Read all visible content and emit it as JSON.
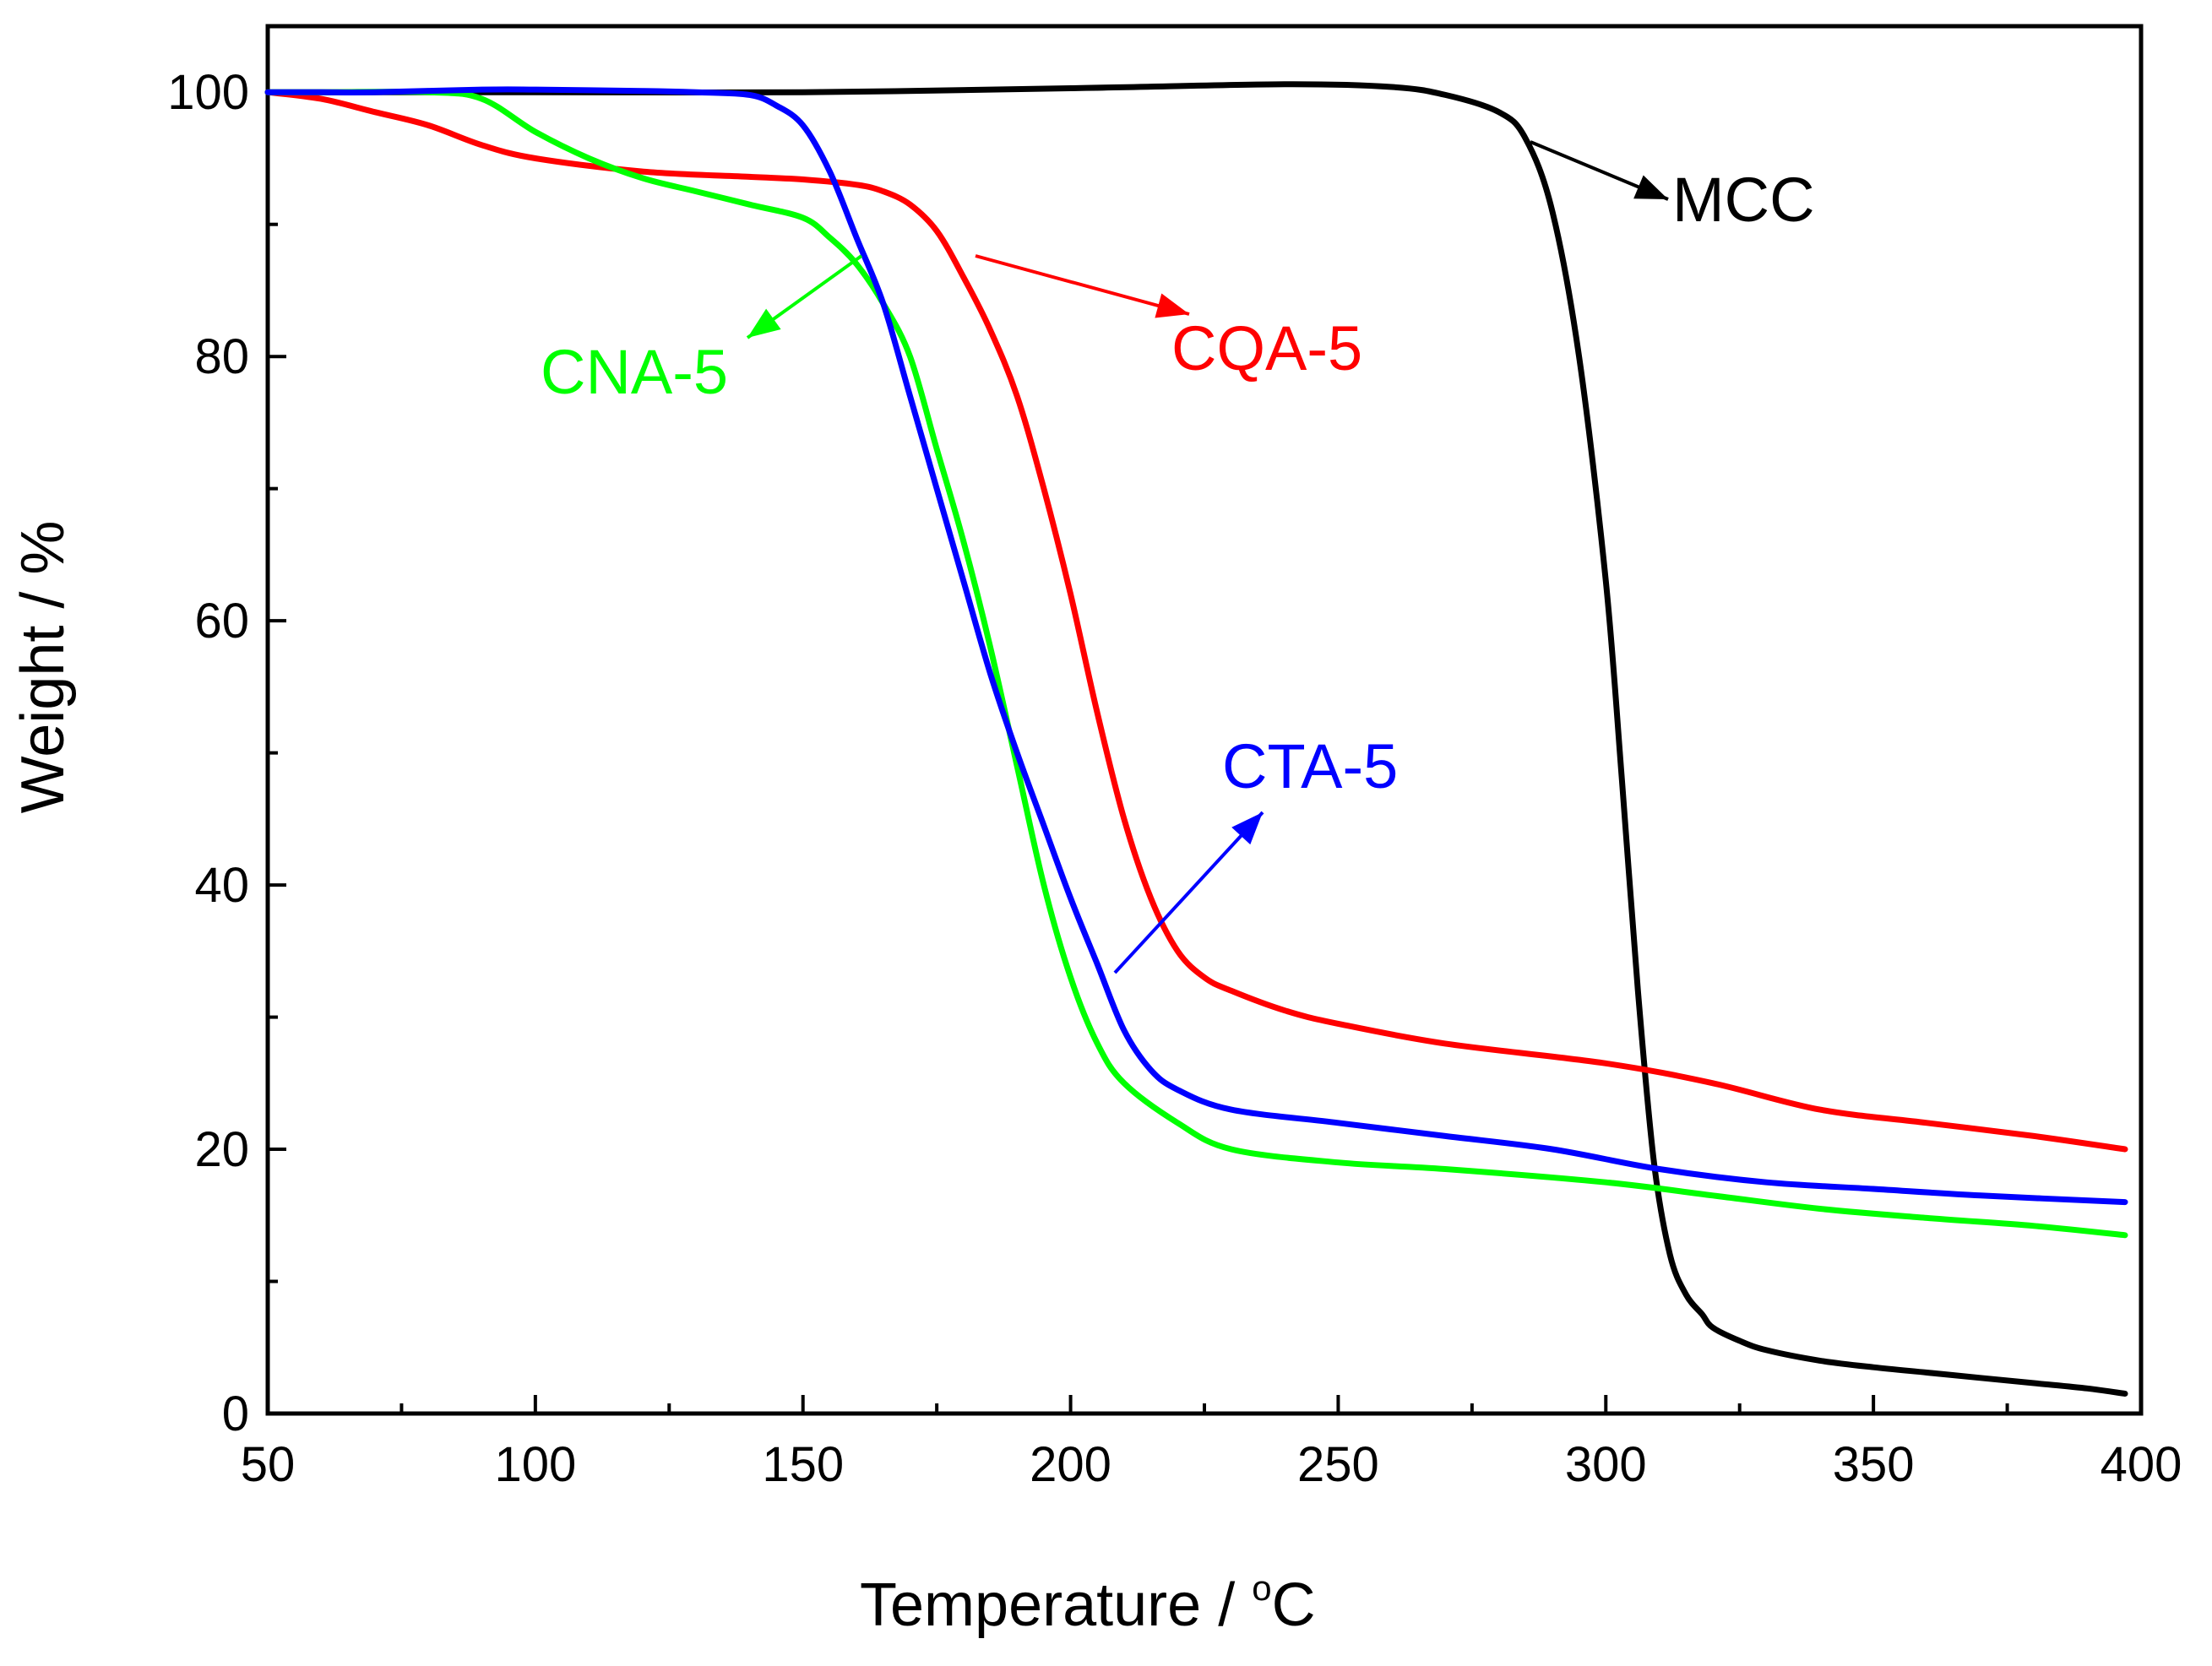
{
  "chart_data": {
    "type": "line",
    "title": "",
    "xlabel": "Temperature / °C",
    "xlabel_main": "Temperature / ",
    "xlabel_unit_sup": "o",
    "xlabel_unit": "C",
    "ylabel": "Weight  / %",
    "xlim": [
      50,
      400
    ],
    "ylim": [
      0,
      105
    ],
    "x_ticks": [
      50,
      100,
      150,
      200,
      250,
      300,
      350,
      400
    ],
    "x_minor_ticks": [
      75,
      125,
      175,
      225,
      275,
      325,
      375
    ],
    "y_ticks": [
      0,
      20,
      40,
      60,
      80,
      100
    ],
    "y_minor_ticks": [
      10,
      30,
      50,
      70,
      90
    ],
    "grid": false,
    "series": [
      {
        "name": "MCC",
        "color": "#000000",
        "x": [
          50,
          100,
          150,
          200,
          240,
          260,
          270,
          280,
          285,
          290,
          295,
          300,
          303,
          306,
          309,
          312,
          315,
          318,
          320,
          325,
          330,
          340,
          350,
          360,
          370,
          380,
          390,
          397
        ],
        "y": [
          100,
          100,
          100,
          100.3,
          100.6,
          100.4,
          99.8,
          98.5,
          96.5,
          91,
          80,
          63,
          48,
          32,
          19,
          12,
          9,
          7.5,
          6.5,
          5.5,
          4.8,
          4.0,
          3.5,
          3.1,
          2.7,
          2.3,
          1.9,
          1.5
        ]
      },
      {
        "name": "CQA-5",
        "color": "#ff0000",
        "x": [
          50,
          60,
          70,
          80,
          90,
          100,
          120,
          140,
          150,
          160,
          165,
          170,
          175,
          180,
          185,
          190,
          195,
          200,
          205,
          210,
          215,
          220,
          225,
          230,
          240,
          250,
          270,
          300,
          320,
          340,
          360,
          380,
          397
        ],
        "y": [
          100,
          99.5,
          98.5,
          97.5,
          96,
          95,
          94,
          93.6,
          93.4,
          93,
          92.5,
          91.5,
          89.5,
          86,
          82,
          77,
          70,
          62,
          53,
          45,
          39,
          35,
          33,
          32,
          30.5,
          29.5,
          28,
          26.5,
          25,
          23,
          22,
          21,
          20
        ]
      },
      {
        "name": "CNA-5",
        "color": "#00ff00",
        "x": [
          50,
          60,
          80,
          90,
          100,
          110,
          120,
          130,
          140,
          150,
          155,
          160,
          165,
          170,
          175,
          180,
          185,
          190,
          195,
          200,
          205,
          210,
          220,
          230,
          250,
          270,
          300,
          320,
          340,
          360,
          380,
          397
        ],
        "y": [
          100,
          100,
          100,
          99.5,
          97,
          95,
          93.5,
          92.5,
          91.5,
          90.5,
          89,
          87,
          84,
          80,
          73,
          66,
          58,
          49,
          40,
          33,
          28,
          25,
          22,
          20,
          19,
          18.5,
          17.5,
          16.5,
          15.5,
          14.8,
          14.2,
          13.5
        ]
      },
      {
        "name": "CTA-5",
        "color": "#0000ff",
        "x": [
          50,
          60,
          70,
          90,
          100,
          120,
          130,
          140,
          145,
          150,
          155,
          160,
          165,
          170,
          175,
          180,
          185,
          190,
          195,
          200,
          205,
          210,
          215,
          220,
          230,
          250,
          270,
          290,
          310,
          330,
          350,
          370,
          397
        ],
        "y": [
          100,
          100,
          100,
          100.2,
          100.2,
          100.1,
          100,
          99.8,
          99,
          97.5,
          94,
          89,
          84,
          77,
          70,
          63,
          56,
          50,
          44.5,
          39,
          34,
          29,
          26,
          24.5,
          23,
          22,
          21,
          20,
          18.5,
          17.5,
          17,
          16.5,
          16
        ]
      }
    ],
    "annotations": [
      {
        "text": "MCC",
        "color": "#000000"
      },
      {
        "text": "CQA-5",
        "color": "#ff0000"
      },
      {
        "text": "CNA-5",
        "color": "#00ff00"
      },
      {
        "text": "CTA-5",
        "color": "#0000ff"
      }
    ]
  }
}
